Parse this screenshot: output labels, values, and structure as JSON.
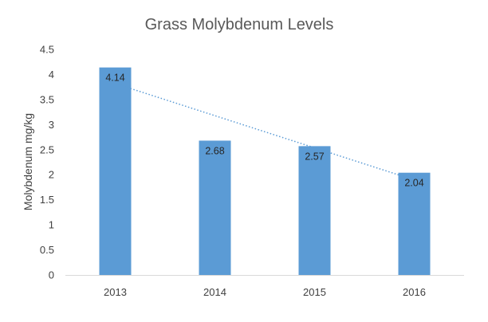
{
  "chart_data": {
    "type": "bar",
    "title": "Grass Molybdenum Levels",
    "xlabel": "",
    "ylabel": "Molybdenum mg/kg",
    "categories": [
      "2013",
      "2014",
      "2015",
      "2016"
    ],
    "values": [
      4.14,
      2.68,
      2.57,
      2.04
    ],
    "data_labels": [
      "4.14",
      "2.68",
      "2.57",
      "2.04"
    ],
    "ylim": [
      0,
      4.5
    ],
    "yticks": [
      0,
      0.5,
      1,
      1.5,
      2,
      2.5,
      3,
      3.5,
      4,
      4.5
    ],
    "ytick_labels": [
      "0",
      "0.5",
      "1",
      "1.5",
      "2",
      "2.5",
      "3",
      "3.5",
      "4",
      "4.5"
    ],
    "grid": false,
    "legend": "none",
    "trendline": {
      "type": "linear",
      "style": "dotted"
    },
    "colors": {
      "bar": "#5B9BD5",
      "trendline": "#5B9BD5",
      "axis": "#D9D9D9"
    }
  }
}
